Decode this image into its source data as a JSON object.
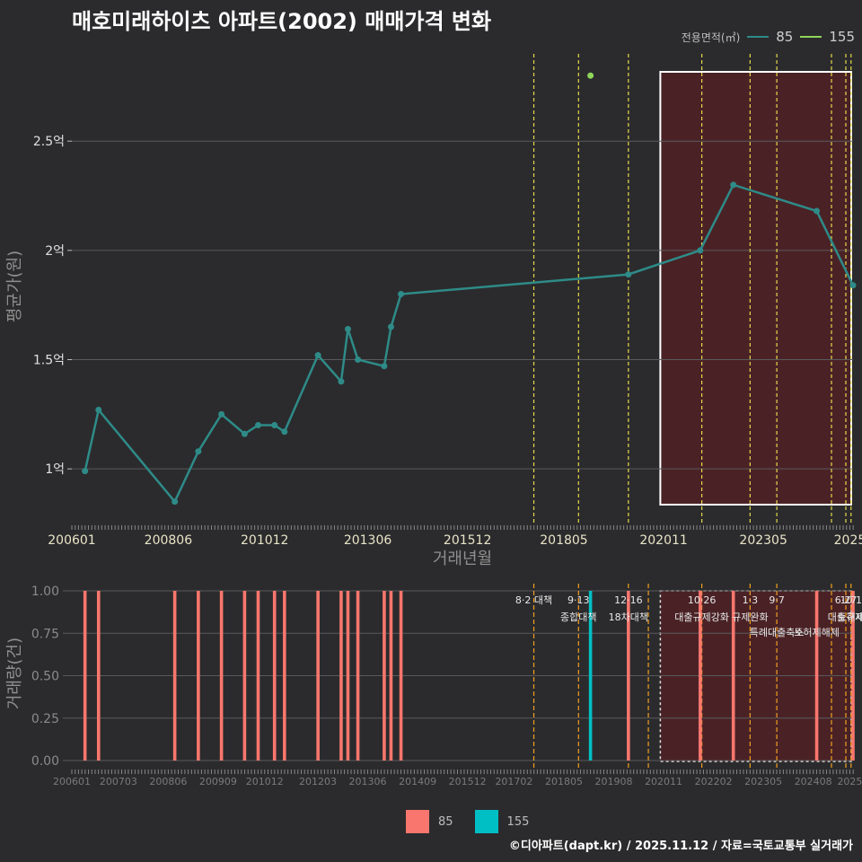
{
  "title": "매호미래하이츠 아파트(2002) 매매가격 변화",
  "legend": {
    "label": "전용면적(㎡)",
    "items": [
      {
        "name": "85",
        "color": "#2e8b88"
      },
      {
        "name": "155",
        "color": "#8fd65a"
      }
    ]
  },
  "bar_legend": [
    {
      "name": "85",
      "color": "#f8766d"
    },
    {
      "name": "155",
      "color": "#00bfc4"
    }
  ],
  "credit": "©디아파트(dapt.kr) / 2025.11.12 / 자료=국토교통부 실거래가",
  "chart_data": [
    {
      "type": "line",
      "title": "매호미래하이츠 아파트(2002) 매매가격 변화",
      "xlabel": "거래년월",
      "ylabel": "평균가(원)",
      "xlim": [
        2006.0,
        2025.58
      ],
      "ylim": [
        0.75,
        2.92
      ],
      "yticks": [
        1,
        1.5,
        2,
        2.5
      ],
      "ytick_labels": [
        "1억",
        "1.5억",
        "2억",
        "2.5억"
      ],
      "xticks": [
        2006.0,
        2008.417,
        2010.833,
        2013.417,
        2015.917,
        2018.333,
        2020.833,
        2023.333,
        2025.5
      ],
      "xtick_labels": [
        "200601",
        "200806",
        "201012",
        "201306",
        "201512",
        "201805",
        "202011",
        "202305",
        "2025"
      ],
      "vlines": [
        2017.58,
        2018.7,
        2019.95,
        2021.79,
        2023.0,
        2023.67,
        2025.04,
        2025.4,
        2025.53
      ],
      "highlight": [
        2020.75,
        2025.58
      ],
      "series": [
        {
          "name": "85",
          "color": "#2e8b88",
          "x": [
            2006.33,
            2006.67,
            2008.58,
            2009.17,
            2009.75,
            2010.33,
            2010.67,
            2011.08,
            2011.33,
            2012.17,
            2012.75,
            2012.92,
            2013.17,
            2013.83,
            2014.0,
            2014.25,
            2019.95,
            2021.75,
            2022.58,
            2024.67,
            2025.58
          ],
          "y": [
            0.99,
            1.27,
            0.85,
            1.08,
            1.25,
            1.16,
            1.2,
            1.2,
            1.17,
            1.52,
            1.4,
            1.64,
            1.5,
            1.47,
            1.65,
            1.8,
            1.89,
            2.0,
            2.3,
            2.18,
            1.84
          ]
        },
        {
          "name": "155",
          "color": "#8fd65a",
          "x": [
            2019.0
          ],
          "y": [
            2.8
          ]
        }
      ]
    },
    {
      "type": "bar",
      "xlabel": "",
      "ylabel": "거래량(건)",
      "xlim": [
        2006.0,
        2025.58
      ],
      "ylim": [
        0,
        1.0
      ],
      "yticks": [
        0,
        0.25,
        0.5,
        0.75,
        1.0
      ],
      "ytick_labels": [
        "0.00",
        "0.25",
        "0.50",
        "0.75",
        "1.00"
      ],
      "xticks": [
        2006.0,
        2007.167,
        2008.417,
        2009.667,
        2010.833,
        2012.167,
        2013.417,
        2014.667,
        2015.917,
        2017.083,
        2018.333,
        2019.583,
        2020.833,
        2022.083,
        2023.333,
        2024.583,
        2025.5
      ],
      "xtick_labels": [
        "200601",
        "200703",
        "200806",
        "200909",
        "201012",
        "201203",
        "201306",
        "201409",
        "201512",
        "201702",
        "201805",
        "201908",
        "202011",
        "202202",
        "202305",
        "202408",
        "2025"
      ],
      "vlines": [
        2017.58,
        2018.7,
        2019.95,
        2020.45,
        2021.79,
        2023.0,
        2023.67,
        2025.04,
        2025.4,
        2025.53
      ],
      "highlight": [
        2020.75,
        2025.58
      ],
      "annotations": [
        {
          "x": 2017.58,
          "date": "8·2 대책",
          "text": ""
        },
        {
          "x": 2018.7,
          "date": "9·13",
          "text": "종합대책"
        },
        {
          "x": 2019.95,
          "date": "12·16",
          "text": "18차대책"
        },
        {
          "x": 2021.79,
          "date": "10·26",
          "text": "대출규제강화"
        },
        {
          "x": 2023.0,
          "date": "1·3",
          "text": "규제완화"
        },
        {
          "x": 2023.67,
          "date": "9·7",
          "text": "특례대출축소"
        },
        {
          "x": 2024.67,
          "date": "",
          "text": "토허제해제"
        },
        {
          "x": 2025.4,
          "date": "6·27",
          "text": "대출규제"
        },
        {
          "x": 2025.53,
          "date": "10·1",
          "text": "토허제"
        }
      ],
      "series": [
        {
          "name": "85",
          "color": "#f8766d",
          "x": [
            2006.33,
            2006.67,
            2008.58,
            2009.17,
            2009.75,
            2010.33,
            2010.67,
            2011.08,
            2011.33,
            2012.17,
            2012.75,
            2012.92,
            2013.17,
            2013.83,
            2014.0,
            2014.25,
            2019.95,
            2021.75,
            2022.58,
            2024.67,
            2025.58
          ],
          "y": [
            1,
            1,
            1,
            1,
            1,
            1,
            1,
            1,
            1,
            1,
            1,
            1,
            1,
            1,
            1,
            1,
            1,
            1,
            1,
            1,
            1
          ]
        },
        {
          "name": "155",
          "color": "#00bfc4",
          "x": [
            2019.0
          ],
          "y": [
            1
          ]
        }
      ]
    }
  ]
}
